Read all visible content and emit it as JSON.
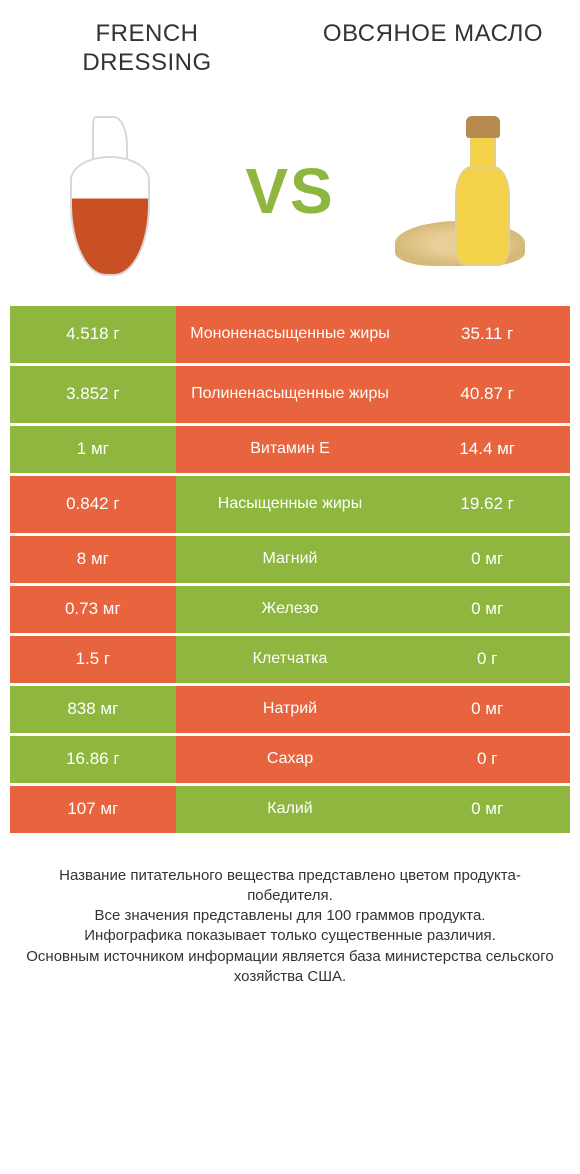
{
  "colors": {
    "green": "#8fb63f",
    "orange": "#e7643e",
    "text": "#333333",
    "white": "#ffffff"
  },
  "left_title": "FRENCH DRESSING",
  "right_title": "ОВСЯНОЕ МАСЛО",
  "vs_label": "VS",
  "table": {
    "rows": [
      {
        "left": "4.518 г",
        "center": "Мононенасыщенные жиры",
        "right": "35.11 г",
        "left_color": "green",
        "center_color": "orange",
        "right_color": "orange",
        "tall": true
      },
      {
        "left": "3.852 г",
        "center": "Полиненасыщенные жиры",
        "right": "40.87 г",
        "left_color": "green",
        "center_color": "orange",
        "right_color": "orange",
        "tall": true
      },
      {
        "left": "1 мг",
        "center": "Витамин E",
        "right": "14.4 мг",
        "left_color": "green",
        "center_color": "orange",
        "right_color": "orange",
        "tall": false
      },
      {
        "left": "0.842 г",
        "center": "Насыщенные жиры",
        "right": "19.62 г",
        "left_color": "orange",
        "center_color": "green",
        "right_color": "green",
        "tall": true
      },
      {
        "left": "8 мг",
        "center": "Магний",
        "right": "0 мг",
        "left_color": "orange",
        "center_color": "green",
        "right_color": "green",
        "tall": false
      },
      {
        "left": "0.73 мг",
        "center": "Железо",
        "right": "0 мг",
        "left_color": "orange",
        "center_color": "green",
        "right_color": "green",
        "tall": false
      },
      {
        "left": "1.5 г",
        "center": "Клетчатка",
        "right": "0 г",
        "left_color": "orange",
        "center_color": "green",
        "right_color": "green",
        "tall": false
      },
      {
        "left": "838 мг",
        "center": "Натрий",
        "right": "0 мг",
        "left_color": "green",
        "center_color": "orange",
        "right_color": "orange",
        "tall": false
      },
      {
        "left": "16.86 г",
        "center": "Сахар",
        "right": "0 г",
        "left_color": "green",
        "center_color": "orange",
        "right_color": "orange",
        "tall": false
      },
      {
        "left": "107 мг",
        "center": "Калий",
        "right": "0 мг",
        "left_color": "orange",
        "center_color": "green",
        "right_color": "green",
        "tall": false
      }
    ]
  },
  "footer": {
    "line1": "Название питательного вещества представлено цветом продукта-победителя.",
    "line2": "Все значения представлены для 100 граммов продукта.",
    "line3": "Инфографика показывает только существенные различия.",
    "line4": "Основным источником информации является база министерства сельского хозяйства США."
  }
}
